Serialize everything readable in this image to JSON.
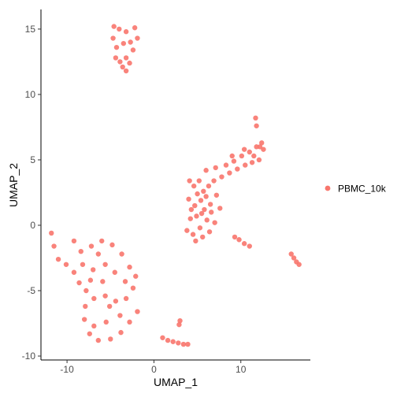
{
  "chart_data": {
    "type": "scatter",
    "title": "",
    "xlabel": "UMAP_1",
    "ylabel": "UMAP_2",
    "xlim": [
      -13,
      18
    ],
    "ylim": [
      -10.3,
      16.5
    ],
    "x_ticks": [
      -10,
      0,
      10
    ],
    "y_ticks": [
      -10,
      -5,
      0,
      5,
      10,
      15
    ],
    "grid": false,
    "legend_position": "right",
    "point_color": "#F8766D",
    "series": [
      {
        "name": "PBMC_10k",
        "color": "#F8766D",
        "clusters": [
          {
            "label": "top-right-diagonal-lobe",
            "points": [
              [
                5.2,
                3.4
              ],
              [
                6.0,
                4.2
              ],
              [
                7.1,
                4.4
              ],
              [
                8.3,
                4.6
              ],
              [
                9.2,
                4.9
              ],
              [
                10.1,
                5.3
              ],
              [
                11.0,
                5.6
              ],
              [
                11.8,
                6.0
              ],
              [
                12.4,
                6.3
              ],
              [
                12.6,
                5.8
              ],
              [
                12.1,
                5.0
              ],
              [
                11.3,
                4.8
              ],
              [
                10.5,
                4.6
              ],
              [
                9.6,
                4.3
              ],
              [
                8.7,
                4.0
              ],
              [
                7.8,
                3.7
              ],
              [
                6.9,
                3.4
              ],
              [
                6.3,
                3.0
              ],
              [
                5.7,
                2.6
              ],
              [
                9.0,
                5.3
              ],
              [
                10.4,
                5.8
              ],
              [
                11.5,
                5.3
              ],
              [
                12.2,
                6.0
              ]
            ]
          },
          {
            "label": "main-central-mass",
            "points": [
              [
                4.1,
                3.4
              ],
              [
                4.6,
                3.0
              ],
              [
                5.0,
                2.4
              ],
              [
                4.0,
                2.0
              ],
              [
                4.7,
                1.5
              ],
              [
                5.4,
                1.9
              ],
              [
                6.0,
                2.2
              ],
              [
                5.8,
                1.2
              ],
              [
                4.9,
                0.7
              ],
              [
                4.2,
                0.5
              ],
              [
                3.8,
                -0.4
              ],
              [
                4.5,
                -0.7
              ],
              [
                5.3,
                -0.2
              ],
              [
                6.1,
                0.4
              ],
              [
                6.6,
                1.0
              ],
              [
                7.0,
                0.2
              ],
              [
                6.4,
                -0.5
              ],
              [
                5.6,
                -0.9
              ],
              [
                4.8,
                -1.2
              ],
              [
                6.5,
                1.6
              ],
              [
                7.2,
                2.3
              ],
              [
                7.6,
                1.3
              ],
              [
                5.5,
                0.9
              ],
              [
                4.3,
                1.2
              ]
            ]
          },
          {
            "label": "upper-island",
            "points": [
              [
                -4.6,
                15.2
              ],
              [
                -4.0,
                15.0
              ],
              [
                -3.2,
                14.8
              ],
              [
                -2.2,
                15.1
              ],
              [
                -1.9,
                14.3
              ],
              [
                -4.7,
                14.3
              ],
              [
                -4.3,
                13.6
              ],
              [
                -3.5,
                13.9
              ],
              [
                -2.7,
                14.0
              ],
              [
                -2.4,
                13.4
              ],
              [
                -4.4,
                12.8
              ],
              [
                -3.9,
                12.5
              ],
              [
                -3.2,
                12.8
              ],
              [
                -2.8,
                12.4
              ],
              [
                -3.6,
                12.1
              ],
              [
                -3.2,
                11.8
              ]
            ]
          },
          {
            "label": "lower-left-mass",
            "points": [
              [
                -11.8,
                -0.6
              ],
              [
                -11.5,
                -1.6
              ],
              [
                -11.0,
                -2.6
              ],
              [
                -10.1,
                -3.0
              ],
              [
                -9.2,
                -1.2
              ],
              [
                -8.4,
                -2.0
              ],
              [
                -7.2,
                -1.6
              ],
              [
                -6.0,
                -1.2
              ],
              [
                -4.8,
                -1.5
              ],
              [
                -3.7,
                -2.2
              ],
              [
                -2.8,
                -3.2
              ],
              [
                -2.1,
                -3.9
              ],
              [
                -2.4,
                -4.8
              ],
              [
                -3.2,
                -5.6
              ],
              [
                -4.4,
                -5.8
              ],
              [
                -5.6,
                -5.4
              ],
              [
                -6.9,
                -5.6
              ],
              [
                -7.8,
                -5.0
              ],
              [
                -8.6,
                -4.4
              ],
              [
                -9.2,
                -3.6
              ],
              [
                -8.2,
                -3.0
              ],
              [
                -7.0,
                -3.4
              ],
              [
                -5.6,
                -3.0
              ],
              [
                -4.5,
                -3.6
              ],
              [
                -5.9,
                -4.3
              ],
              [
                -7.3,
                -4.2
              ],
              [
                -7.9,
                -6.2
              ],
              [
                -8.0,
                -7.2
              ],
              [
                -7.4,
                -8.3
              ],
              [
                -6.4,
                -8.8
              ],
              [
                -5.0,
                -8.7
              ],
              [
                -3.8,
                -8.2
              ],
              [
                -2.8,
                -7.4
              ],
              [
                -1.9,
                -6.6
              ],
              [
                -3.9,
                -6.9
              ],
              [
                -5.5,
                -7.4
              ],
              [
                -6.9,
                -7.7
              ],
              [
                -5.1,
                -6.2
              ],
              [
                -3.3,
                -4.3
              ],
              [
                -6.4,
                -2.2
              ]
            ]
          },
          {
            "label": "small-bottom-streak",
            "points": [
              [
                1.0,
                -8.6
              ],
              [
                1.6,
                -8.8
              ],
              [
                2.2,
                -8.9
              ],
              [
                2.8,
                -9.0
              ],
              [
                3.4,
                -9.1
              ],
              [
                3.9,
                -9.1
              ],
              [
                2.9,
                -7.6
              ],
              [
                3.0,
                -7.3
              ]
            ]
          },
          {
            "label": "right-streak",
            "points": [
              [
                9.3,
                -0.9
              ],
              [
                9.8,
                -1.1
              ],
              [
                10.4,
                -1.4
              ],
              [
                11.0,
                -1.6
              ],
              [
                15.8,
                -2.2
              ],
              [
                16.1,
                -2.5
              ],
              [
                16.4,
                -2.8
              ],
              [
                16.7,
                -3.0
              ],
              [
                11.7,
                8.2
              ],
              [
                11.8,
                7.6
              ]
            ]
          }
        ]
      }
    ]
  }
}
